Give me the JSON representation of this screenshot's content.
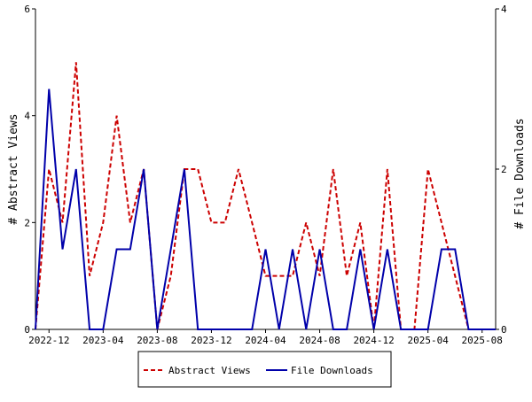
{
  "chart_data": {
    "type": "line",
    "x": [
      "2022-11",
      "2022-12",
      "2023-01",
      "2023-02",
      "2023-03",
      "2023-04",
      "2023-05",
      "2023-06",
      "2023-07",
      "2023-08",
      "2023-09",
      "2023-10",
      "2023-11",
      "2023-12",
      "2024-01",
      "2024-02",
      "2024-03",
      "2024-04",
      "2024-05",
      "2024-06",
      "2024-07",
      "2024-08",
      "2024-09",
      "2024-10",
      "2024-11",
      "2024-12",
      "2025-01",
      "2025-02",
      "2025-03",
      "2025-04",
      "2025-05",
      "2025-06",
      "2025-07",
      "2025-08",
      "2025-09"
    ],
    "x_ticks": [
      "2022-12",
      "2023-04",
      "2023-08",
      "2023-12",
      "2024-04",
      "2024-08",
      "2024-12",
      "2025-04",
      "2025-08"
    ],
    "series": [
      {
        "name": "Abstract Views",
        "axis": "left",
        "color": "#cc0000",
        "dash": "dashed",
        "values": [
          0,
          3,
          2,
          5,
          1,
          2,
          4,
          2,
          3,
          0,
          1,
          3,
          3,
          2,
          2,
          3,
          2,
          1,
          1,
          1,
          2,
          1,
          3,
          1,
          2,
          0,
          3,
          0,
          0,
          3,
          2,
          1,
          0,
          0,
          0
        ]
      },
      {
        "name": "File Downloads",
        "axis": "right",
        "color": "#0000aa",
        "dash": "solid",
        "values": [
          0,
          3,
          1,
          2,
          0,
          0,
          1,
          1,
          2,
          0,
          1,
          2,
          0,
          0,
          0,
          0,
          0,
          1,
          0,
          1,
          0,
          1,
          0,
          0,
          1,
          0,
          1,
          0,
          0,
          0,
          1,
          1,
          0,
          0,
          0
        ]
      }
    ],
    "ylabel": "# Abstract Views",
    "y2label": "# File Downloads",
    "ylim": [
      0,
      6
    ],
    "y_ticks": [
      "0",
      "2",
      "4",
      "6"
    ],
    "y2lim": [
      0,
      4
    ],
    "y2_ticks": [
      "0",
      "2",
      "4"
    ],
    "grid": false,
    "legend": "bottom"
  }
}
